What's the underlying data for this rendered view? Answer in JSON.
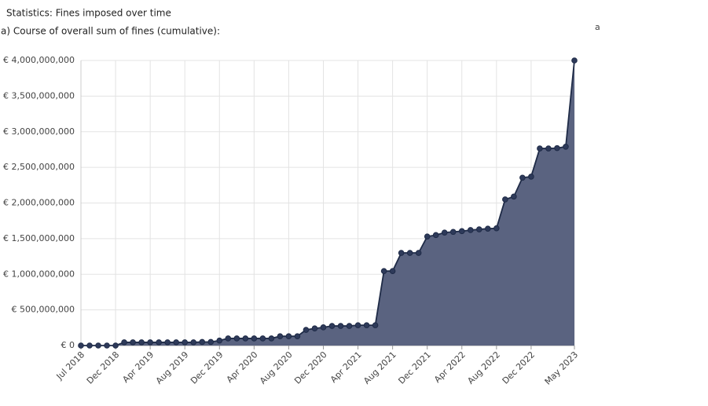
{
  "header": {
    "title": "Statistics: Fines imposed over time",
    "subtitle": "a) Course of overall sum of fines (cumulative):",
    "side_text": "a"
  },
  "chart_data": {
    "type": "area",
    "categories": [
      "Jul 2018",
      null,
      null,
      null,
      "Dec 2018",
      null,
      null,
      null,
      "Apr 2019",
      null,
      null,
      null,
      "Aug 2019",
      null,
      null,
      null,
      "Dec 2019",
      null,
      null,
      null,
      "Apr 2020",
      null,
      null,
      null,
      "Aug 2020",
      null,
      null,
      null,
      "Dec 2020",
      null,
      null,
      null,
      "Apr 2021",
      null,
      null,
      null,
      "Aug 2021",
      null,
      null,
      null,
      "Dec 2021",
      null,
      null,
      null,
      "Apr 2022",
      null,
      null,
      null,
      "Aug 2022",
      null,
      null,
      null,
      "Dec 2022",
      null,
      null,
      null,
      null,
      "May 2023"
    ],
    "values": [
      0,
      0,
      0,
      0,
      0,
      45000000,
      45000000,
      45000000,
      45000000,
      45000000,
      45000000,
      45000000,
      45000000,
      45000000,
      50000000,
      50000000,
      70000000,
      100000000,
      100000000,
      100000000,
      100000000,
      100000000,
      100000000,
      130000000,
      130000000,
      130000000,
      220000000,
      240000000,
      255000000,
      275000000,
      275000000,
      275000000,
      285000000,
      285000000,
      285000000,
      1045000000,
      1045000000,
      1300000000,
      1300000000,
      1300000000,
      1530000000,
      1550000000,
      1585000000,
      1595000000,
      1605000000,
      1620000000,
      1630000000,
      1640000000,
      1645000000,
      2050000000,
      2090000000,
      2355000000,
      2370000000,
      2765000000,
      2765000000,
      2770000000,
      2790000000,
      4000000000
    ],
    "color": "#5a6380",
    "line_color": "#1f2b47",
    "ylim": [
      0,
      4000000000
    ],
    "yticks": [
      {
        "value": 0,
        "label": "€ 0"
      },
      {
        "value": 500000000,
        "label": "€ 500,000,000"
      },
      {
        "value": 1000000000,
        "label": "€ 1,000,000,000"
      },
      {
        "value": 1500000000,
        "label": "€ 1,500,000,000"
      },
      {
        "value": 2000000000,
        "label": "€ 2,000,000,000"
      },
      {
        "value": 2500000000,
        "label": "€ 2,500,000,000"
      },
      {
        "value": 3000000000,
        "label": "€ 3,000,000,000"
      },
      {
        "value": 3500000000,
        "label": "€ 3,500,000,000"
      },
      {
        "value": 4000000000,
        "label": "€ 4,000,000,000"
      }
    ],
    "grid": true
  }
}
